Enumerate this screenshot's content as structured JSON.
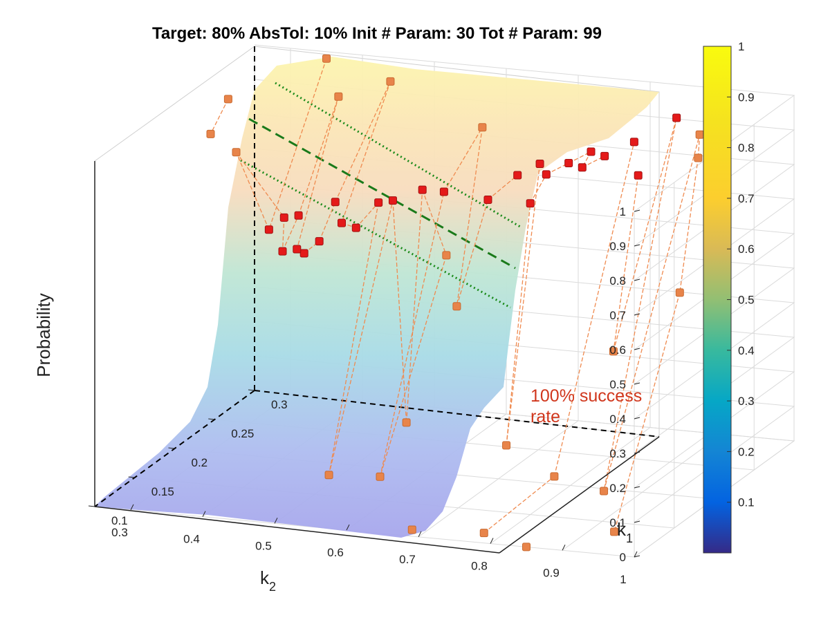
{
  "chart_data": {
    "type": "surface",
    "title": "Target: 80%  AbsTol: 10%  Init # Param: 30  Tot # Param: 99",
    "zlabel": "Probability",
    "xlabel_main": "k",
    "xlabel_sub": "2",
    "ylabel_main": "k",
    "ylabel_sub": "1",
    "annotation": "100% success rate",
    "annotation_lines": [
      "100% success",
      "rate"
    ],
    "k2_ticks": [
      "1",
      "0.9",
      "0.8",
      "0.7",
      "0.6",
      "0.5",
      "0.4",
      "0.3"
    ],
    "k1_ticks": [
      "0.1",
      "0.15",
      "0.2",
      "0.25",
      "0.3"
    ],
    "z_ticks": [
      "0",
      "0.1",
      "0.2",
      "0.3",
      "0.4",
      "0.5",
      "0.6",
      "0.7",
      "0.8",
      "0.9",
      "1"
    ],
    "k2_range": [
      0.25,
      1.0
    ],
    "k1_range": [
      0.1,
      0.3
    ],
    "z_range": [
      0,
      1
    ],
    "colorbar_ticks": [
      "0.1",
      "0.2",
      "0.3",
      "0.4",
      "0.5",
      "0.6",
      "0.7",
      "0.8",
      "0.9",
      "1"
    ],
    "colormap": "parula",
    "grid": true,
    "target_line": {
      "value": 0.8,
      "color": "#1a7a1a",
      "style": "dashed"
    },
    "tolerance_lines": [
      {
        "value": 0.9,
        "color": "#1a8a1a",
        "style": "dotted"
      },
      {
        "value": 0.7,
        "color": "#1a8a1a",
        "style": "dotted"
      }
    ],
    "series": [
      {
        "name": "",
        "marker": "filled-square",
        "color": "#e8844a",
        "points": [
          {
            "k2": 0.95,
            "k1": 0.12,
            "p": 0.03
          },
          {
            "k2": 0.85,
            "k1": 0.1,
            "p": 0.0
          },
          {
            "k2": 0.78,
            "k1": 0.11,
            "p": 0.01
          },
          {
            "k2": 0.68,
            "k1": 0.11,
            "p": 0.0
          },
          {
            "k2": 0.88,
            "k1": 0.17,
            "p": 0.05
          },
          {
            "k2": 0.8,
            "k1": 0.18,
            "p": 0.06
          },
          {
            "k2": 0.7,
            "k1": 0.21,
            "p": 0.08
          },
          {
            "k2": 0.58,
            "k1": 0.16,
            "p": 0.05
          },
          {
            "k2": 0.55,
            "k1": 0.22,
            "p": 0.1
          },
          {
            "k2": 0.52,
            "k1": 0.15,
            "p": 0.06
          },
          {
            "k2": 0.93,
            "k1": 0.22,
            "p": 0.55
          },
          {
            "k2": 0.86,
            "k1": 0.2,
            "p": 0.4
          },
          {
            "k2": 0.9,
            "k1": 0.27,
            "p": 0.85
          },
          {
            "k2": 0.88,
            "k1": 0.29,
            "p": 0.88
          },
          {
            "k2": 0.62,
            "k1": 0.22,
            "p": 0.45
          },
          {
            "k2": 0.55,
            "k1": 0.27,
            "p": 0.5
          },
          {
            "k2": 0.6,
            "k1": 0.27,
            "p": 0.88
          },
          {
            "k2": 0.45,
            "k1": 0.29,
            "p": 0.95
          },
          {
            "k2": 0.4,
            "k1": 0.27,
            "p": 0.93
          },
          {
            "k2": 0.35,
            "k1": 0.3,
            "p": 0.98
          },
          {
            "k2": 0.3,
            "k1": 0.2,
            "p": 0.92
          },
          {
            "k2": 0.28,
            "k1": 0.24,
            "p": 0.95
          },
          {
            "k2": 0.38,
            "k1": 0.16,
            "p": 0.95
          }
        ]
      },
      {
        "name": "",
        "marker": "filled-square",
        "color": "#e41a1a",
        "points": [
          {
            "k2": 0.87,
            "k1": 0.27,
            "p": 0.96
          },
          {
            "k2": 0.85,
            "k1": 0.24,
            "p": 0.84
          },
          {
            "k2": 0.8,
            "k1": 0.28,
            "p": 0.86
          },
          {
            "k2": 0.77,
            "k1": 0.27,
            "p": 0.83
          },
          {
            "k2": 0.75,
            "k1": 0.26,
            "p": 0.81
          },
          {
            "k2": 0.74,
            "k1": 0.28,
            "p": 0.82
          },
          {
            "k2": 0.72,
            "k1": 0.27,
            "p": 0.8
          },
          {
            "k2": 0.7,
            "k1": 0.26,
            "p": 0.78
          },
          {
            "k2": 0.7,
            "k1": 0.24,
            "p": 0.73
          },
          {
            "k2": 0.68,
            "k1": 0.27,
            "p": 0.79
          },
          {
            "k2": 0.66,
            "k1": 0.26,
            "p": 0.77
          },
          {
            "k2": 0.63,
            "k1": 0.25,
            "p": 0.71
          },
          {
            "k2": 0.58,
            "k1": 0.24,
            "p": 0.74
          },
          {
            "k2": 0.55,
            "k1": 0.24,
            "p": 0.74
          },
          {
            "k2": 0.52,
            "k1": 0.23,
            "p": 0.72
          },
          {
            "k2": 0.5,
            "k1": 0.23,
            "p": 0.71
          },
          {
            "k2": 0.48,
            "k1": 0.22,
            "p": 0.65
          },
          {
            "k2": 0.46,
            "k1": 0.22,
            "p": 0.66
          },
          {
            "k2": 0.44,
            "k1": 0.21,
            "p": 0.62
          },
          {
            "k2": 0.43,
            "k1": 0.2,
            "p": 0.6
          },
          {
            "k2": 0.42,
            "k1": 0.2,
            "p": 0.61
          },
          {
            "k2": 0.4,
            "k1": 0.2,
            "p": 0.6
          },
          {
            "k2": 0.44,
            "k1": 0.23,
            "p": 0.7
          },
          {
            "k2": 0.4,
            "k1": 0.22,
            "p": 0.67
          },
          {
            "k2": 0.38,
            "k1": 0.22,
            "p": 0.66
          },
          {
            "k2": 0.37,
            "k1": 0.21,
            "p": 0.64
          }
        ]
      }
    ]
  }
}
